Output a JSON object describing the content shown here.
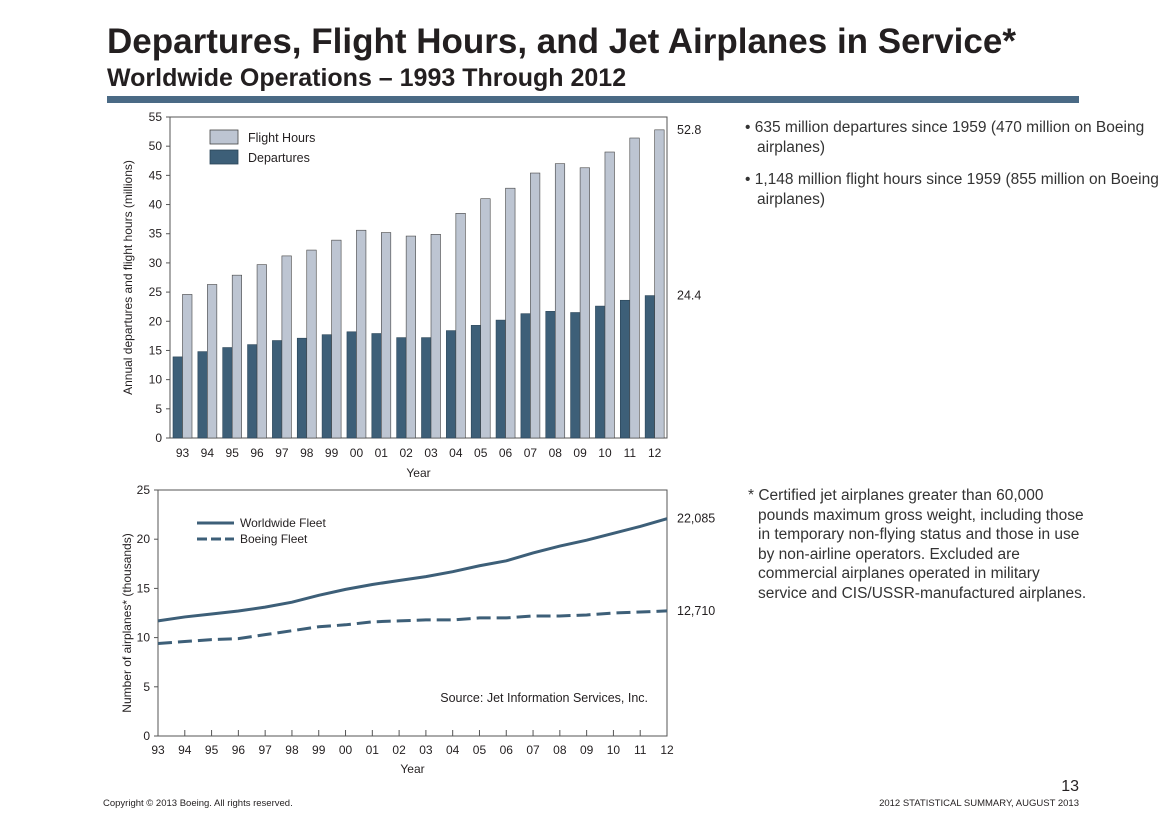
{
  "header": {
    "title": "Departures, Flight Hours, and Jet Airplanes in Service*",
    "subtitle": "Worldwide Operations – 1993 Through 2012"
  },
  "bullets": [
    "635 million departures since 1959 (470 million on Boeing airplanes)",
    "1,148 million flight hours since 1959 (855 million on Boeing airplanes)"
  ],
  "footnote": "* Certified jet airplanes greater than 60,000 pounds maximum gross weight, including those in temporary non-flying status and those in use by non-airline operators. Excluded are commercial airplanes operated in military service and CIS/USSR-manufactured airplanes.",
  "footer": {
    "copyright": "Copyright © 2013 Boeing. All rights reserved.",
    "publication": "2012 STATISTICAL SUMMARY, AUGUST 2013",
    "page": "13"
  },
  "colors": {
    "dark": "#3d5f78",
    "light": "#bdc5d2",
    "rule": "#4a6a85"
  },
  "chart_data": [
    {
      "type": "bar",
      "xlabel": "Year",
      "ylabel": "Annual departures and flight hours (millions)",
      "ylim": [
        0,
        55
      ],
      "yticks": [
        0,
        5,
        10,
        15,
        20,
        25,
        30,
        35,
        40,
        45,
        50,
        55
      ],
      "categories": [
        "93",
        "94",
        "95",
        "96",
        "97",
        "98",
        "99",
        "00",
        "01",
        "02",
        "03",
        "04",
        "05",
        "06",
        "07",
        "08",
        "09",
        "10",
        "11",
        "12"
      ],
      "legend": "top-left",
      "series": [
        {
          "name": "Departures",
          "color": "#3d5f78",
          "values": [
            13.9,
            14.8,
            15.5,
            16.0,
            16.7,
            17.1,
            17.7,
            18.2,
            17.9,
            17.2,
            17.2,
            18.4,
            19.3,
            20.2,
            21.3,
            21.7,
            21.5,
            22.6,
            23.6,
            24.4
          ]
        },
        {
          "name": "Flight Hours",
          "color": "#bdc5d2",
          "values": [
            24.6,
            26.3,
            27.9,
            29.7,
            31.2,
            32.2,
            33.9,
            35.6,
            35.2,
            34.6,
            34.9,
            38.5,
            41.0,
            42.8,
            45.4,
            47.0,
            46.3,
            49.0,
            51.4,
            52.8
          ]
        }
      ],
      "annotations": [
        "52.8",
        "24.4"
      ]
    },
    {
      "type": "line",
      "xlabel": "Year",
      "ylabel": "Number of airplanes* (thousands)",
      "ylim": [
        0,
        25
      ],
      "yticks": [
        0,
        5,
        10,
        15,
        20,
        25
      ],
      "categories": [
        "93",
        "94",
        "95",
        "96",
        "97",
        "98",
        "99",
        "00",
        "01",
        "02",
        "03",
        "04",
        "05",
        "06",
        "07",
        "08",
        "09",
        "10",
        "11",
        "12"
      ],
      "legend": "top-left",
      "series": [
        {
          "name": "Worldwide Fleet",
          "style": "solid",
          "values": [
            11.7,
            12.1,
            12.4,
            12.7,
            13.1,
            13.6,
            14.3,
            14.9,
            15.4,
            15.8,
            16.2,
            16.7,
            17.3,
            17.8,
            18.6,
            19.3,
            19.9,
            20.6,
            21.3,
            22.085
          ]
        },
        {
          "name": "Boeing Fleet",
          "style": "dashed",
          "values": [
            9.4,
            9.6,
            9.8,
            9.9,
            10.3,
            10.7,
            11.1,
            11.3,
            11.6,
            11.7,
            11.8,
            11.8,
            12.0,
            12.0,
            12.2,
            12.2,
            12.3,
            12.5,
            12.6,
            12.71
          ]
        }
      ],
      "annotations": [
        "22,085",
        "12,710"
      ],
      "source": "Source: Jet Information Services, Inc."
    }
  ]
}
